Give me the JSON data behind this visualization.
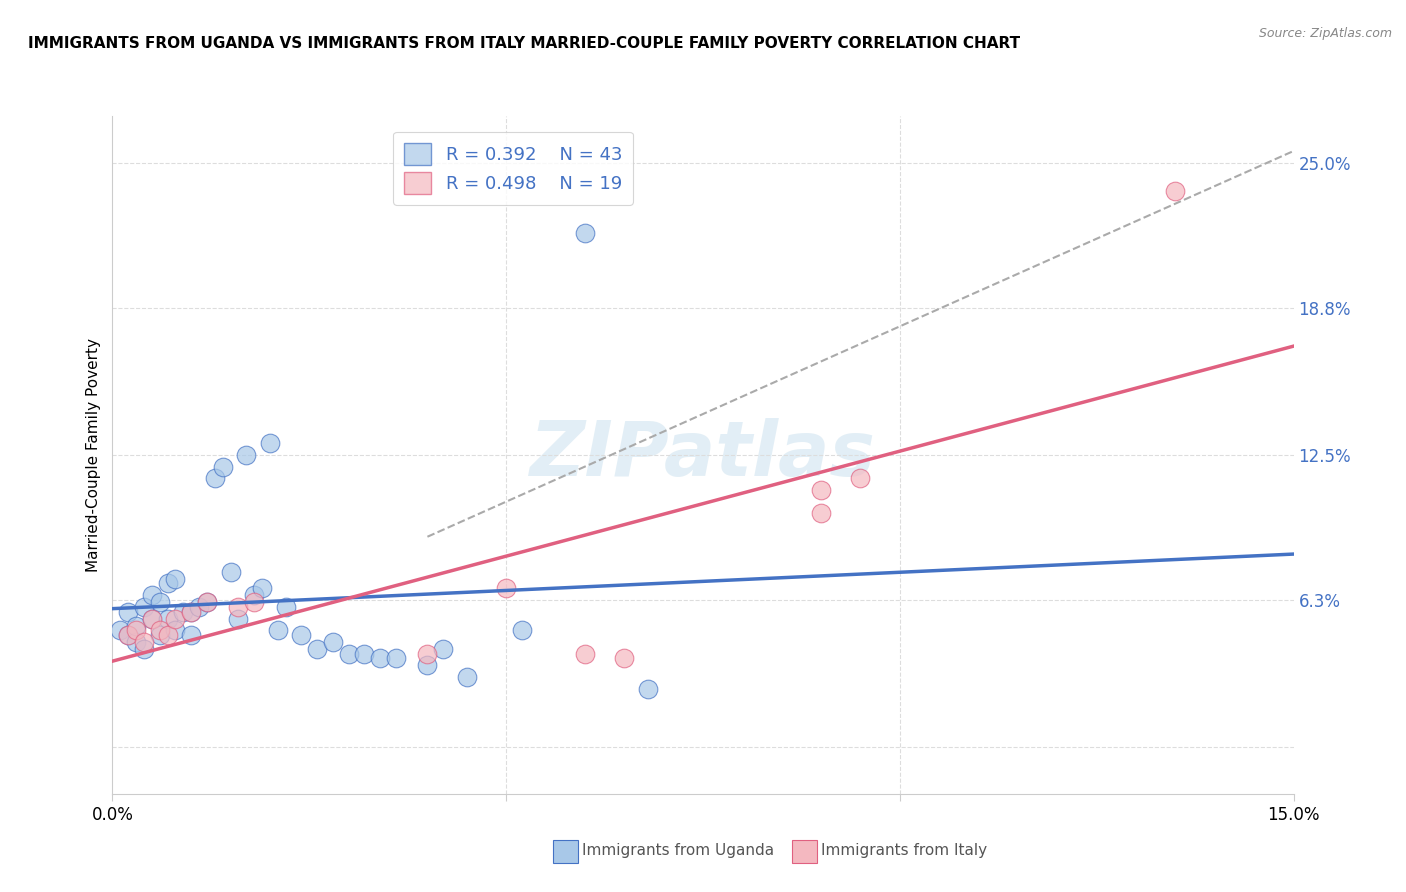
{
  "title": "IMMIGRANTS FROM UGANDA VS IMMIGRANTS FROM ITALY MARRIED-COUPLE FAMILY POVERTY CORRELATION CHART",
  "source": "Source: ZipAtlas.com",
  "ylabel_left": "Married-Couple Family Poverty",
  "xlim": [
    0,
    0.15
  ],
  "ylim": [
    -0.02,
    0.27
  ],
  "color_uganda": "#a8c8e8",
  "color_italy": "#f4b8c0",
  "color_line_uganda": "#4472c4",
  "color_line_italy": "#e06080",
  "color_dashed": "#aaaaaa",
  "watermark": "ZIPatlas",
  "legend_r1": "R = 0.392",
  "legend_n1": "N = 43",
  "legend_r2": "R = 0.498",
  "legend_n2": "N = 19",
  "uganda_x": [
    0.001,
    0.002,
    0.002,
    0.003,
    0.003,
    0.004,
    0.004,
    0.005,
    0.005,
    0.006,
    0.006,
    0.007,
    0.007,
    0.008,
    0.008,
    0.009,
    0.01,
    0.01,
    0.011,
    0.012,
    0.013,
    0.014,
    0.015,
    0.016,
    0.017,
    0.018,
    0.019,
    0.02,
    0.021,
    0.022,
    0.024,
    0.026,
    0.028,
    0.03,
    0.032,
    0.034,
    0.036,
    0.04,
    0.042,
    0.045,
    0.052,
    0.06,
    0.068
  ],
  "uganda_y": [
    0.05,
    0.048,
    0.058,
    0.045,
    0.052,
    0.042,
    0.06,
    0.055,
    0.065,
    0.048,
    0.062,
    0.055,
    0.07,
    0.05,
    0.072,
    0.058,
    0.048,
    0.058,
    0.06,
    0.062,
    0.115,
    0.12,
    0.075,
    0.055,
    0.125,
    0.065,
    0.068,
    0.13,
    0.05,
    0.06,
    0.048,
    0.042,
    0.045,
    0.04,
    0.04,
    0.038,
    0.038,
    0.035,
    0.042,
    0.03,
    0.05,
    0.22,
    0.025
  ],
  "italy_x": [
    0.002,
    0.003,
    0.004,
    0.005,
    0.006,
    0.007,
    0.008,
    0.01,
    0.012,
    0.016,
    0.018,
    0.04,
    0.05,
    0.06,
    0.065,
    0.09,
    0.095,
    0.09,
    0.135
  ],
  "italy_y": [
    0.048,
    0.05,
    0.045,
    0.055,
    0.05,
    0.048,
    0.055,
    0.058,
    0.062,
    0.06,
    0.062,
    0.04,
    0.068,
    0.04,
    0.038,
    0.11,
    0.115,
    0.1,
    0.238
  ]
}
